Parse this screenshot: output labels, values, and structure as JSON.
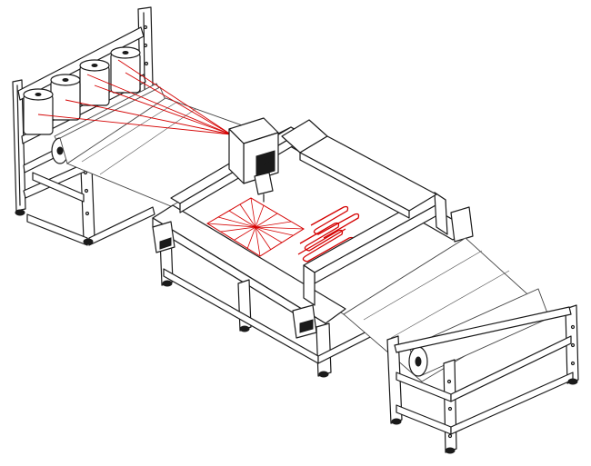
{
  "diagram": {
    "thread_color": "#d40000",
    "line_color": "#1a1a1a",
    "spool_count": 4,
    "parts": [
      "spool-rack",
      "supply-fabric-roll",
      "gantry-frame",
      "sewing-head",
      "take-up-roll"
    ],
    "patterns": [
      "radial-sunburst",
      "serpentine-meander"
    ]
  }
}
